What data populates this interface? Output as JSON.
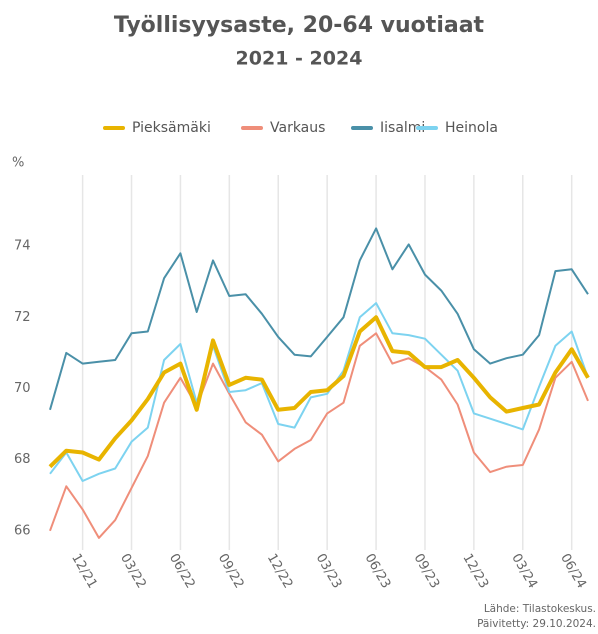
{
  "chart_data": {
    "type": "line",
    "title": "Työllisyysaste, 20-64 vuotiaat",
    "subtitle": "2021 - 2024",
    "y_label": "%",
    "categories": [
      null,
      null,
      "12/21",
      null,
      null,
      "03/22",
      null,
      null,
      "06/22",
      null,
      null,
      "09/22",
      null,
      null,
      "12/22",
      null,
      null,
      "03/23",
      null,
      null,
      "06/23",
      null,
      null,
      "09/23",
      null,
      null,
      "12/23",
      null,
      null,
      "03/24",
      null,
      null,
      "06/24",
      null
    ],
    "series": [
      {
        "name": "Pieksämäki",
        "color": "#e8b400",
        "values": [
          67.8,
          68.25,
          68.2,
          68.0,
          68.6,
          69.1,
          69.7,
          70.45,
          70.7,
          69.4,
          71.35,
          70.1,
          70.3,
          70.25,
          69.4,
          69.45,
          69.9,
          69.95,
          70.35,
          71.6,
          72.0,
          71.05,
          71.0,
          70.6,
          70.6,
          70.8,
          70.3,
          69.75,
          69.35,
          69.45,
          69.55,
          70.45,
          71.1,
          70.3
        ]
      },
      {
        "name": "Varkaus",
        "color": "#ef8e7a",
        "values": [
          66.0,
          67.25,
          66.6,
          65.8,
          66.3,
          67.2,
          68.1,
          69.6,
          70.3,
          69.5,
          70.7,
          69.85,
          69.05,
          68.7,
          67.95,
          68.3,
          68.55,
          69.3,
          69.6,
          71.2,
          71.55,
          70.7,
          70.85,
          70.6,
          70.25,
          69.55,
          68.2,
          67.65,
          67.8,
          67.85,
          68.85,
          70.3,
          70.75,
          69.65
        ]
      },
      {
        "name": "Iisalmi",
        "color": "#4a90a8",
        "values": [
          69.4,
          71.0,
          70.7,
          70.75,
          70.8,
          71.55,
          71.6,
          73.1,
          73.8,
          72.15,
          73.6,
          72.6,
          72.65,
          72.1,
          71.45,
          70.95,
          70.9,
          71.45,
          72.0,
          73.6,
          74.5,
          73.35,
          74.05,
          73.2,
          72.75,
          72.1,
          71.1,
          70.7,
          70.85,
          70.95,
          71.5,
          73.3,
          73.35,
          72.65
        ]
      },
      {
        "name": "Heinola",
        "color": "#7dd3f0",
        "values": [
          67.6,
          68.2,
          67.4,
          67.6,
          67.75,
          68.5,
          68.9,
          70.8,
          71.25,
          69.6,
          71.2,
          69.9,
          69.95,
          70.15,
          69.0,
          68.9,
          69.75,
          69.85,
          70.5,
          72.0,
          72.4,
          71.55,
          71.5,
          71.4,
          70.95,
          70.5,
          69.3,
          69.15,
          69.0,
          68.85,
          70.05,
          71.2,
          71.6,
          70.3
        ]
      }
    ],
    "ylim": [
      65.6,
      76
    ],
    "yticks": [
      66,
      68,
      70,
      72,
      74
    ],
    "grid": "x",
    "annotations": [
      "Lähde: Tilastokeskus.",
      "Päivitetty: 29.10.2024."
    ]
  }
}
